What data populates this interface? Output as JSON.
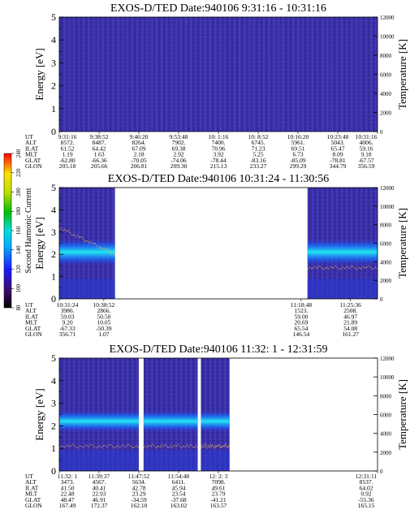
{
  "figure": {
    "colorbar": {
      "label": "Second Harmonic Current",
      "ticks": [
        "80",
        "100",
        "120",
        "140",
        "160",
        "180",
        "200",
        "220",
        "240"
      ]
    }
  },
  "chart_data": [
    {
      "type": "heatmap",
      "title": "EXOS-D/TED   Date:940106   9:31:16 - 10:31:16",
      "ylabel": "Energy [eV]",
      "y2label": "Temperature [K]",
      "ylim": [
        0,
        5
      ],
      "yticks": [
        "0",
        "1",
        "2",
        "3",
        "4",
        "5"
      ],
      "y2lim": [
        0,
        12000
      ],
      "y2ticks": [
        "0",
        "2000",
        "4000",
        "6000",
        "8000",
        "10000",
        "12000"
      ],
      "data_segments": [
        [
          0,
          1
        ]
      ],
      "spectrum_description": "uniform low-level background",
      "orbit_rows": [
        "UT",
        "ALT",
        "ILAT",
        "MLT",
        "GLAT",
        "GLON"
      ],
      "orbit_columns": [
        {
          "pos": 0.0,
          "values": [
            "9:31:16",
            "8572.",
            "61.52",
            "1.19",
            "-62.80",
            "205.18"
          ]
        },
        {
          "pos": 0.125,
          "values": [
            "9:38:52",
            "8487.",
            "64.42",
            "1.63",
            "-66.36",
            "205.66"
          ]
        },
        {
          "pos": 0.25,
          "values": [
            "9:46:20",
            "8264.",
            "67.09",
            "2.18",
            "-70.05",
            "206.81"
          ]
        },
        {
          "pos": 0.375,
          "values": [
            "9:53:48",
            "7902.",
            "69.38",
            "2.92",
            "-74.06",
            "209.30"
          ]
        },
        {
          "pos": 0.5,
          "values": [
            "10: 1:16",
            "7400.",
            "70.96",
            "3.92",
            "-78.44",
            "215.13"
          ]
        },
        {
          "pos": 0.625,
          "values": [
            "10: 8:52",
            "6745.",
            "71.23",
            "5.25",
            "-83.16",
            "233.27"
          ]
        },
        {
          "pos": 0.75,
          "values": [
            "10:16:20",
            "5961.",
            "69.51",
            "6.73",
            "-85.09",
            "299.29"
          ]
        },
        {
          "pos": 0.875,
          "values": [
            "10:23:48",
            "5043.",
            "65.47",
            "8.09",
            "-78.81",
            "344.79"
          ]
        },
        {
          "pos": 1.0,
          "values": [
            "10:31:16",
            "4006.",
            "59.16",
            "9.18",
            "-67.57",
            "356.59"
          ]
        }
      ]
    },
    {
      "type": "heatmap",
      "title": "EXOS-D/TED   Date:940106   10:31:24 - 11:30:56",
      "ylabel": "Energy [eV]",
      "y2label": "Temperature [K]",
      "ylim": [
        0,
        5
      ],
      "yticks": [
        "0",
        "1",
        "2",
        "3",
        "4",
        "5"
      ],
      "y2lim": [
        0,
        12000
      ],
      "y2ticks": [
        "0",
        "2000",
        "4000",
        "6000",
        "8000",
        "10000",
        "12000"
      ],
      "data_segments": [
        [
          0,
          0.175
        ],
        [
          0.78,
          1
        ]
      ],
      "spectrum_description": "enhanced band near 2 eV",
      "orbit_rows": [
        "UT",
        "ALT",
        "ILAT",
        "MLT",
        "GLAT",
        "GLON"
      ],
      "orbit_columns": [
        {
          "pos": 0.0,
          "values": [
            "10:31:24",
            "3986.",
            "59.03",
            "9.20",
            "-67.33",
            "356.71"
          ]
        },
        {
          "pos": 0.14,
          "values": [
            "10:38:52",
            "2866.",
            "50.50",
            "10.05",
            "-50.39",
            "1.07"
          ]
        },
        {
          "pos": 0.76,
          "values": [
            "11:18:48",
            "1523.",
            "59.00",
            "20.69",
            "65.54",
            "146.54"
          ]
        },
        {
          "pos": 0.915,
          "values": [
            "11:25:36",
            "2508.",
            "46.97",
            "21.89",
            "54.08",
            "161.27"
          ]
        }
      ]
    },
    {
      "type": "heatmap",
      "title": "EXOS-D/TED   Date:940106   11:32: 1 - 12:31:59",
      "ylabel": "Energy [eV]",
      "y2label": "Temperature [K]",
      "ylim": [
        0,
        5
      ],
      "yticks": [
        "0",
        "1",
        "2",
        "3",
        "4",
        "5"
      ],
      "y2lim": [
        0,
        12000
      ],
      "y2ticks": [
        "0",
        "2000",
        "4000",
        "6000",
        "8000",
        "10000",
        "12000"
      ],
      "data_segments": [
        [
          0,
          0.25
        ],
        [
          0.265,
          0.435
        ],
        [
          0.445,
          0.535
        ]
      ],
      "spectrum_description": "enhanced band near 2.2 eV",
      "orbit_rows": [
        "UT",
        "ALT",
        "ILAT",
        "MLT",
        "GLAT",
        "GLON"
      ],
      "orbit_columns": [
        {
          "pos": 0.0,
          "values": [
            "11:32: 1",
            "3473.",
            "41.50",
            "22.48",
            "48.47",
            "167.49"
          ]
        },
        {
          "pos": 0.125,
          "values": [
            "11:39:37",
            "4567.",
            "40.41",
            "22.93",
            "46.91",
            "172.37"
          ]
        },
        {
          "pos": 0.25,
          "values": [
            "11:47:52",
            "5634.",
            "42.78",
            "23.29",
            "-34.59",
            "162.10"
          ]
        },
        {
          "pos": 0.375,
          "values": [
            "11:54:48",
            "6411.",
            "45.94",
            "23.54",
            "-37.68",
            "163.02"
          ]
        },
        {
          "pos": 0.5,
          "values": [
            "12: 2: 3",
            "7098.",
            "49.61",
            "23.79",
            "-41.21",
            "163.57"
          ]
        },
        {
          "pos": 1.0,
          "values": [
            "12:31:11",
            "8537.",
            "64.02",
            "0.92",
            "-55.36",
            "165.15"
          ]
        }
      ]
    }
  ]
}
